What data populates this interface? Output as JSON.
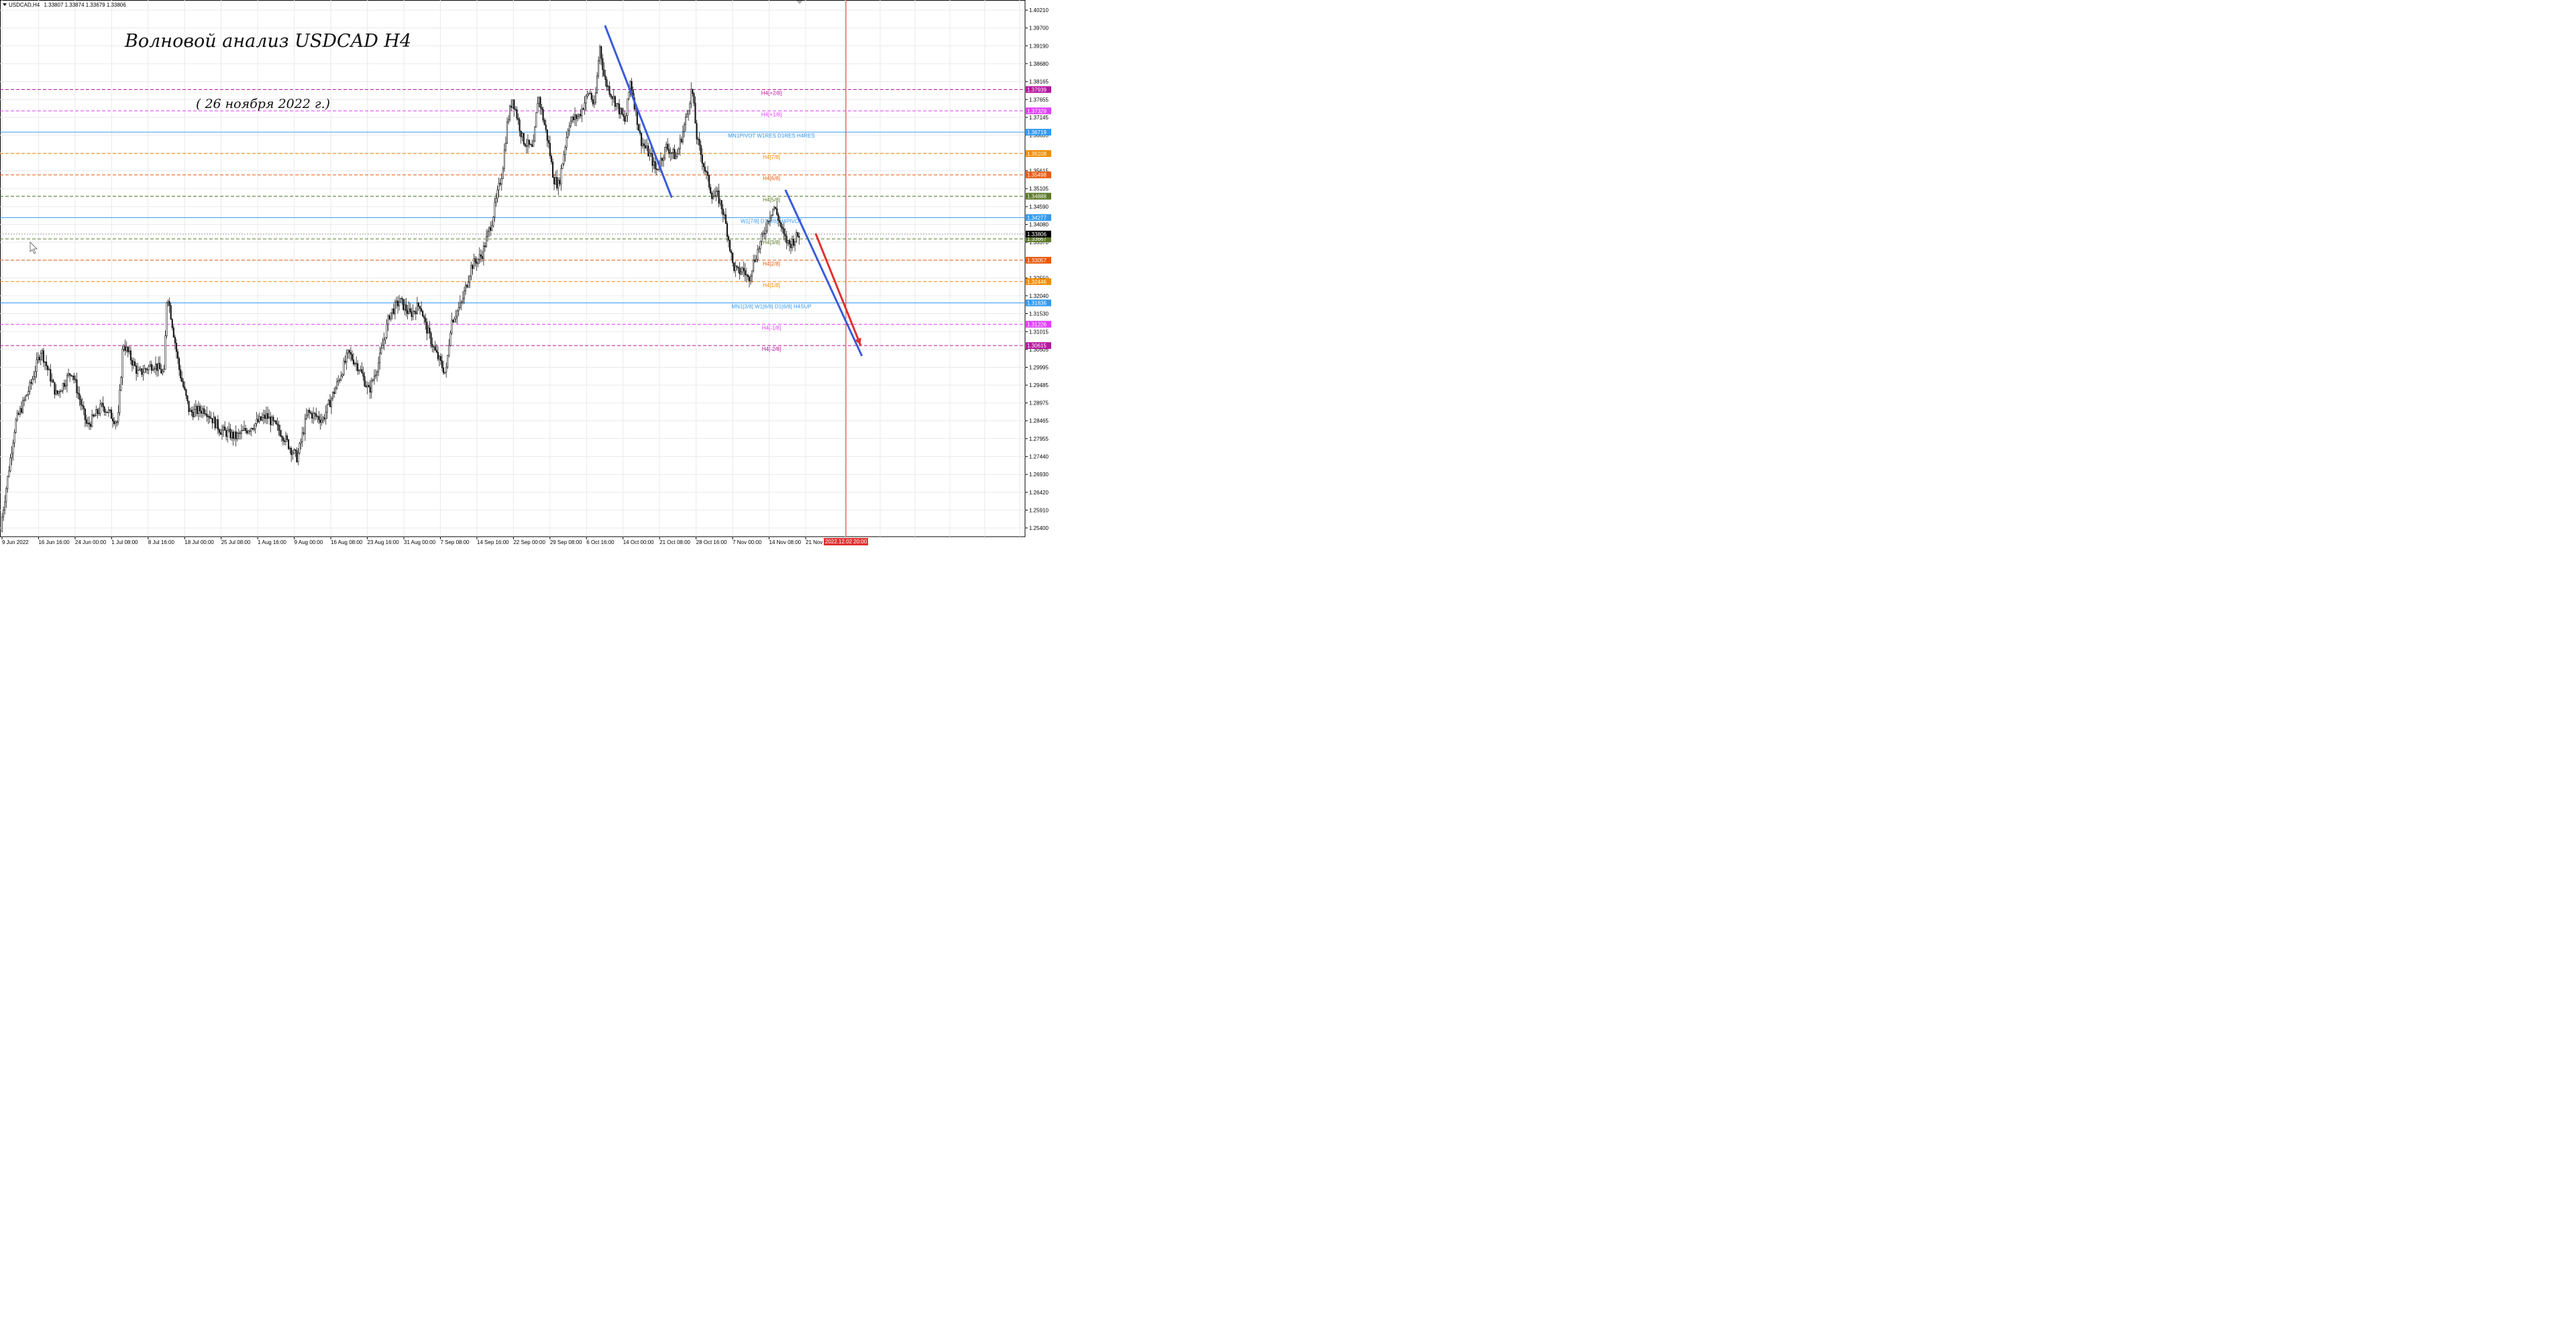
{
  "header": {
    "symbol": "USDCAD,H4",
    "ohlc": "1.33807 1.33874 1.33679 1.33806"
  },
  "annotations": {
    "title": "Волновой анализ USDCAD H4",
    "date": "( 26 ноября 2022 г.)"
  },
  "colors": {
    "background": "#ffffff",
    "grid": "#e9e9e9",
    "candle": "#1a1a1a",
    "wave_line": "#3b5bdb",
    "forecast_arrow": "#e03131",
    "vline": "#e03131",
    "current_price_bg": "#000000"
  },
  "chart_data": {
    "type": "candlestick",
    "symbol": "USDCAD",
    "timeframe": "H4",
    "ylim": [
      1.2515,
      1.405
    ],
    "y_ticks": [
      "1.40210",
      "1.39700",
      "1.39190",
      "1.38680",
      "1.38165",
      "1.37655",
      "1.37145",
      "1.36635",
      "1.36125",
      "1.35615",
      "1.35105",
      "1.34590",
      "1.34080",
      "1.33570",
      "1.33060",
      "1.32550",
      "1.32040",
      "1.31530",
      "1.31015",
      "1.30505",
      "1.29995",
      "1.29485",
      "1.28975",
      "1.28465",
      "1.27955",
      "1.27440",
      "1.26930",
      "1.26420",
      "1.25910",
      "1.25400"
    ],
    "x_ticks": [
      "9 Jun 2022",
      "16 Jun 16:00",
      "24 Jun 00:00",
      "1 Jul 08:00",
      "8 Jul 16:00",
      "18 Jul 00:00",
      "25 Jul 08:00",
      "1 Aug 16:00",
      "9 Aug 00:00",
      "16 Aug 08:00",
      "23 Aug 16:00",
      "31 Aug 00:00",
      "7 Sep 08:00",
      "14 Sep 16:00",
      "22 Sep 00:00",
      "29 Sep 08:00",
      "6 Oct 16:00",
      "14 Oct 00:00",
      "21 Oct 08:00",
      "28 Oct 16:00",
      "7 Nov 00:00",
      "14 Nov 08:00",
      "21 Nov 16:00"
    ],
    "x_cursor_label": "2022.12.02 20:00",
    "current_price": "1.33806",
    "price_path": [
      [
        0,
        1.253
      ],
      [
        0.015,
        1.284
      ],
      [
        0.03,
        1.295
      ],
      [
        0.04,
        1.305
      ],
      [
        0.055,
        1.292
      ],
      [
        0.07,
        1.299
      ],
      [
        0.085,
        1.283
      ],
      [
        0.1,
        1.289
      ],
      [
        0.115,
        1.284
      ],
      [
        0.12,
        1.307
      ],
      [
        0.135,
        1.298
      ],
      [
        0.15,
        1.301
      ],
      [
        0.16,
        1.298
      ],
      [
        0.163,
        1.322
      ],
      [
        0.175,
        1.299
      ],
      [
        0.185,
        1.287
      ],
      [
        0.2,
        1.288
      ],
      [
        0.215,
        1.282
      ],
      [
        0.23,
        1.28
      ],
      [
        0.245,
        1.283
      ],
      [
        0.26,
        1.286
      ],
      [
        0.275,
        1.281
      ],
      [
        0.285,
        1.276
      ],
      [
        0.29,
        1.274
      ],
      [
        0.3,
        1.287
      ],
      [
        0.315,
        1.285
      ],
      [
        0.33,
        1.296
      ],
      [
        0.34,
        1.304
      ],
      [
        0.35,
        1.3
      ],
      [
        0.36,
        1.293
      ],
      [
        0.37,
        1.302
      ],
      [
        0.38,
        1.315
      ],
      [
        0.39,
        1.319
      ],
      [
        0.4,
        1.315
      ],
      [
        0.41,
        1.318
      ],
      [
        0.415,
        1.312
      ],
      [
        0.425,
        1.304
      ],
      [
        0.435,
        1.298
      ],
      [
        0.44,
        1.313
      ],
      [
        0.45,
        1.318
      ],
      [
        0.46,
        1.329
      ],
      [
        0.47,
        1.332
      ],
      [
        0.48,
        1.342
      ],
      [
        0.49,
        1.356
      ],
      [
        0.495,
        1.37
      ],
      [
        0.5,
        1.377
      ],
      [
        0.51,
        1.365
      ],
      [
        0.52,
        1.362
      ],
      [
        0.525,
        1.378
      ],
      [
        0.535,
        1.364
      ],
      [
        0.54,
        1.354
      ],
      [
        0.545,
        1.352
      ],
      [
        0.555,
        1.37
      ],
      [
        0.565,
        1.372
      ],
      [
        0.575,
        1.379
      ],
      [
        0.58,
        1.374
      ],
      [
        0.585,
        1.392
      ],
      [
        0.59,
        1.382
      ],
      [
        0.6,
        1.376
      ],
      [
        0.61,
        1.37
      ],
      [
        0.615,
        1.382
      ],
      [
        0.625,
        1.365
      ],
      [
        0.635,
        1.36
      ],
      [
        0.64,
        1.356
      ],
      [
        0.65,
        1.363
      ],
      [
        0.66,
        1.36
      ],
      [
        0.67,
        1.372
      ],
      [
        0.675,
        1.38
      ],
      [
        0.68,
        1.365
      ],
      [
        0.69,
        1.354
      ],
      [
        0.695,
        1.349
      ],
      [
        0.7,
        1.349
      ],
      [
        0.705,
        1.345
      ],
      [
        0.71,
        1.338
      ],
      [
        0.715,
        1.329
      ],
      [
        0.72,
        1.327
      ],
      [
        0.725,
        1.328
      ],
      [
        0.73,
        1.325
      ],
      [
        0.735,
        1.33
      ],
      [
        0.745,
        1.338
      ],
      [
        0.75,
        1.343
      ],
      [
        0.755,
        1.346
      ],
      [
        0.76,
        1.342
      ],
      [
        0.765,
        1.337
      ],
      [
        0.77,
        1.335
      ],
      [
        0.78,
        1.3381
      ]
    ],
    "levels": [
      {
        "price": 1.37939,
        "label": "H4[+2/8]",
        "price_label": "1.37939",
        "color": "#b5179e",
        "style": "dashed"
      },
      {
        "price": 1.37329,
        "label": "H4[+1/8]",
        "price_label": "1.37329",
        "color": "#e040fb",
        "style": "dashed"
      },
      {
        "price": 1.36719,
        "label": "MN1PIVOT W1RES D1RES H4RES",
        "price_label": "1.36719",
        "color": "#339af0",
        "style": "solid"
      },
      {
        "price": 1.36108,
        "label": "H4[7/8]",
        "price_label": "1.36108",
        "color": "#f08c00",
        "style": "dashed"
      },
      {
        "price": 1.35498,
        "label": "H4[6/8]",
        "price_label": "1.35498",
        "color": "#e8590c",
        "style": "dashed"
      },
      {
        "price": 1.34888,
        "label": "H4[5/8]",
        "price_label": "1.34888",
        "color": "#5c7a29",
        "style": "dashed"
      },
      {
        "price": 1.34277,
        "label": "W1[7/8] D1[8/8] H4PIVOT",
        "price_label": "1.34277",
        "color": "#339af0",
        "style": "solid"
      },
      {
        "price": 1.33667,
        "label": "H4[3/8]",
        "price_label": "1.33667",
        "color": "#5c7a29",
        "style": "dashed"
      },
      {
        "price": 1.33057,
        "label": "H4[2/8]",
        "price_label": "1.33057",
        "color": "#e8590c",
        "style": "dashed"
      },
      {
        "price": 1.32446,
        "label": "H4[1/8]",
        "price_label": "1.32446",
        "color": "#f08c00",
        "style": "dashed"
      },
      {
        "price": 1.31836,
        "label": "MN1[3/8] W1[6/8] D1[6/8] H4SUP",
        "price_label": "1.31836",
        "color": "#339af0",
        "style": "solid"
      },
      {
        "price": 1.31226,
        "label": "H4[-1/8]",
        "price_label": "1.31226",
        "color": "#e040fb",
        "style": "dashed"
      },
      {
        "price": 1.30615,
        "label": "H4[-2/8]",
        "price_label": "1.30615",
        "color": "#b5179e",
        "style": "dashed"
      }
    ],
    "wave_lines": [
      {
        "from": [
          0.5905,
          1.3975
        ],
        "to": [
          0.655,
          1.3487
        ],
        "color": "#3b5bdb"
      },
      {
        "from": [
          0.7665,
          1.3505
        ],
        "to": [
          0.8405,
          1.3034
        ],
        "color": "#3b5bdb"
      }
    ],
    "forecast_arrow": {
      "from": [
        0.796,
        1.338
      ],
      "to": [
        0.8395,
        1.3063
      ],
      "color": "#e03131"
    }
  }
}
